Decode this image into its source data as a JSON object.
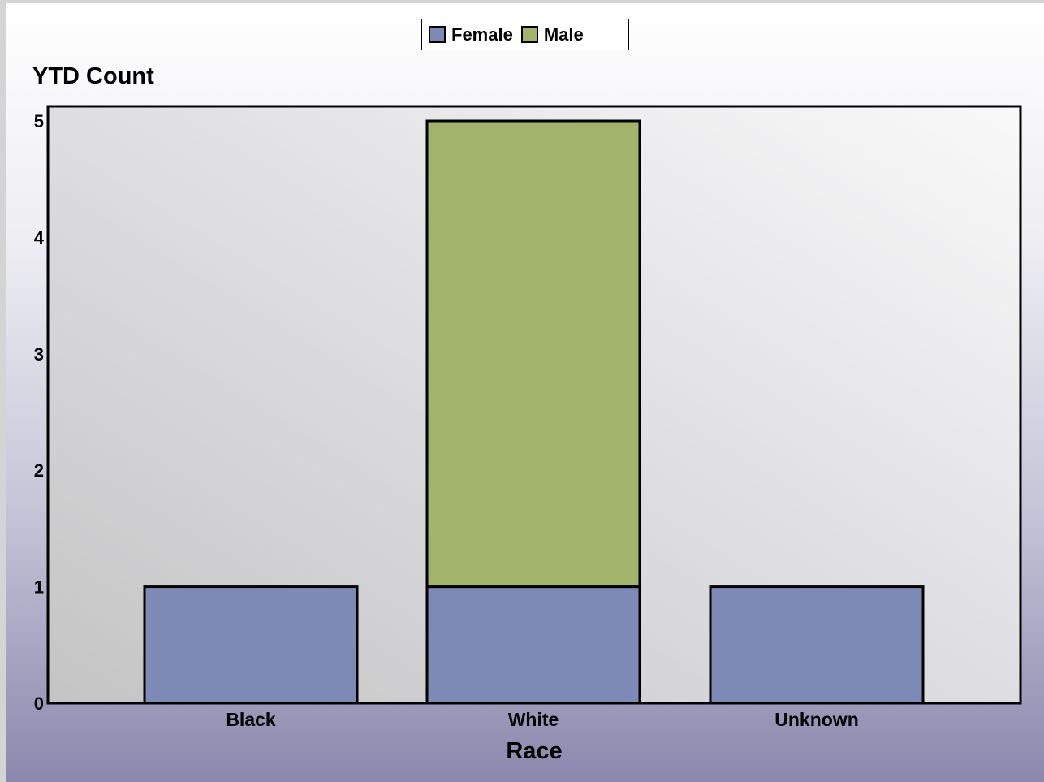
{
  "chart_data": {
    "type": "bar",
    "stacked": true,
    "categories": [
      "Black",
      "White",
      "Unknown"
    ],
    "series": [
      {
        "name": "Female",
        "values": [
          1,
          1,
          1
        ],
        "color": "#7e8ab6"
      },
      {
        "name": "Male",
        "values": [
          0,
          4,
          0
        ],
        "color": "#a2b36b"
      }
    ],
    "ylabel": "YTD Count",
    "xlabel": "Race",
    "ylim": [
      0,
      5
    ],
    "yticks": [
      "0",
      "1",
      "2",
      "3",
      "4",
      "5"
    ],
    "grid": false,
    "legend_position": "top-center"
  }
}
